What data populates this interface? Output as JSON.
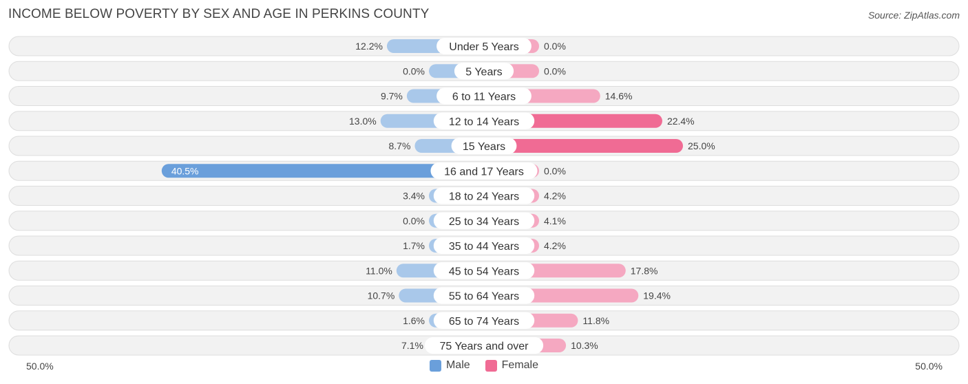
{
  "title": "INCOME BELOW POVERTY BY SEX AND AGE IN PERKINS COUNTY",
  "source": "Source: ZipAtlas.com",
  "colors": {
    "male_strong": "#6a9fdb",
    "male_light": "#a9c8ea",
    "female_strong": "#f06b94",
    "female_light": "#f5a8c1",
    "row_bg": "#f2f2f2",
    "row_border": "#dddddd"
  },
  "legend": {
    "male": "Male",
    "female": "Female"
  },
  "chart_data": {
    "type": "bar",
    "orientation": "horizontal-diverging",
    "title": "INCOME BELOW POVERTY BY SEX AND AGE IN PERKINS COUNTY",
    "categories": [
      "Under 5 Years",
      "5 Years",
      "6 to 11 Years",
      "12 to 14 Years",
      "15 Years",
      "16 and 17 Years",
      "18 to 24 Years",
      "25 to 34 Years",
      "35 to 44 Years",
      "45 to 54 Years",
      "55 to 64 Years",
      "65 to 74 Years",
      "75 Years and over"
    ],
    "series": [
      {
        "name": "Male",
        "values": [
          12.2,
          0.0,
          9.7,
          13.0,
          8.7,
          40.5,
          3.4,
          0.0,
          1.7,
          11.0,
          10.7,
          1.6,
          7.1
        ],
        "labels": [
          "12.2%",
          "0.0%",
          "9.7%",
          "13.0%",
          "8.7%",
          "40.5%",
          "3.4%",
          "0.0%",
          "1.7%",
          "11.0%",
          "10.7%",
          "1.6%",
          "7.1%"
        ]
      },
      {
        "name": "Female",
        "values": [
          0.0,
          0.0,
          14.6,
          22.4,
          25.0,
          0.0,
          4.2,
          4.1,
          4.2,
          17.8,
          19.4,
          11.8,
          10.3
        ],
        "labels": [
          "0.0%",
          "0.0%",
          "14.6%",
          "22.4%",
          "25.0%",
          "0.0%",
          "4.2%",
          "4.1%",
          "4.2%",
          "17.8%",
          "19.4%",
          "11.8%",
          "10.3%"
        ]
      }
    ],
    "xlim": [
      -50,
      50
    ],
    "axis_labels": {
      "left": "50.0%",
      "right": "50.0%"
    },
    "legend_position": "bottom-center"
  }
}
